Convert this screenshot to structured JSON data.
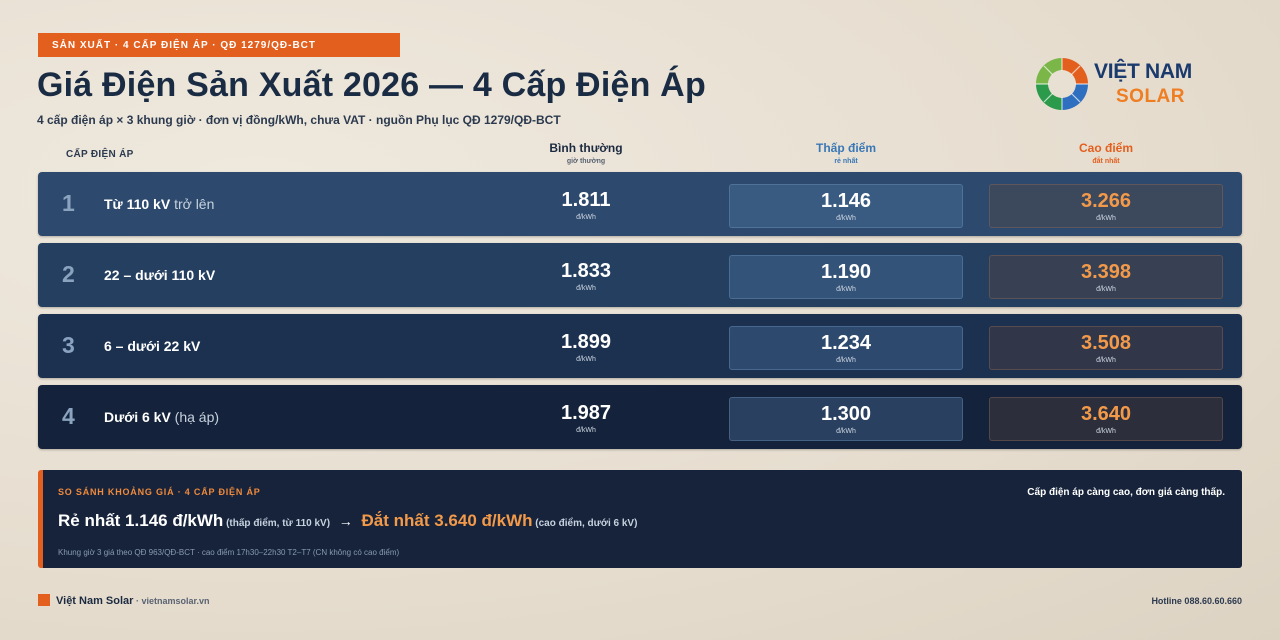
{
  "header": {
    "tag": "SẢN XUẤT · 4 CẤP ĐIỆN ÁP · QĐ 1279/QĐ-BCT",
    "title": "Giá Điện Sản Xuất 2026 — 4 Cấp Điện Áp",
    "subtitle": "4 cấp điện áp × 3 khung giờ · đơn vị đồng/kWh, chưa VAT · nguồn Phụ lục QĐ 1279/QĐ-BCT"
  },
  "logo": {
    "line1": "VIỆT NAM",
    "line2": "SOLAR"
  },
  "columns": {
    "level": "CẤP ĐIỆN ÁP",
    "normal": {
      "title": "Bình thường",
      "sub": "giờ thường",
      "color": "#1b2a40"
    },
    "low": {
      "title": "Thấp điểm",
      "sub": "rẻ nhất",
      "color": "#3a78b5"
    },
    "peak": {
      "title": "Cao điểm",
      "sub": "đắt nhất",
      "color": "#e35f1e"
    }
  },
  "unit": "đ/kWh",
  "rows": [
    {
      "num": "1",
      "label_bold": "Từ 110 kV",
      "label_light": " trở lên",
      "normal": "1.811",
      "low": "1.146",
      "peak": "3.266",
      "bg": "#2d4a6e"
    },
    {
      "num": "2",
      "label_bold": "22 – dưới 110 kV",
      "label_light": "",
      "normal": "1.833",
      "low": "1.190",
      "peak": "3.398",
      "bg": "#253f60"
    },
    {
      "num": "3",
      "label_bold": "6 – dưới 22 kV",
      "label_light": "",
      "normal": "1.899",
      "low": "1.234",
      "peak": "3.508",
      "bg": "#1c3050"
    },
    {
      "num": "4",
      "label_bold": "Dưới 6 kV",
      "label_light": " (hạ áp)",
      "normal": "1.987",
      "low": "1.300",
      "peak": "3.640",
      "bg": "#14233b"
    }
  ],
  "compare": {
    "tag": "SO SÁNH KHOẢNG GIÁ · 4 CẤP ĐIỆN ÁP",
    "note": "Cấp điện áp càng cao, đơn giá càng thấp.",
    "cheap": "Rẻ nhất 1.146 đ/kWh",
    "cheap_note": " (thấp điểm, từ 110 kV)",
    "arrow": "→",
    "expensive": "Đắt nhất 3.640 đ/kWh",
    "expensive_note": " (cao điểm, dưới 6 kV)",
    "foot": "Khung giờ 3 giá theo QĐ 963/QĐ-BCT · cao điểm 17h30–22h30 T2–T7 (CN không có cao điểm)"
  },
  "footer": {
    "brand": "Việt Nam Solar",
    "site": " · vietnamsolar.vn",
    "hotline": "Hotline 088.60.60.660"
  }
}
